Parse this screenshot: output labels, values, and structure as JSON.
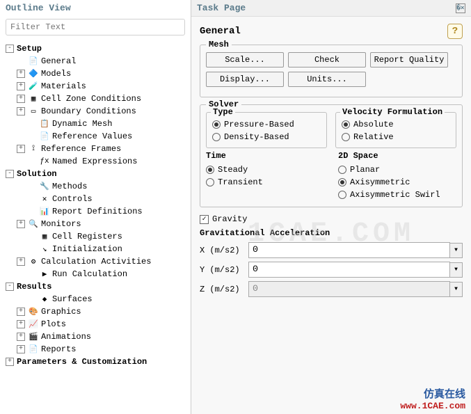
{
  "outline": {
    "title": "Outline View",
    "filter_placeholder": "Filter Text",
    "tree": [
      {
        "lvl": 1,
        "exp": "-",
        "icon": "",
        "label": "Setup",
        "bold": true
      },
      {
        "lvl": 2,
        "exp": "",
        "icon": "📄",
        "label": "General"
      },
      {
        "lvl": 2,
        "exp": "+",
        "icon": "🔷",
        "label": "Models"
      },
      {
        "lvl": 2,
        "exp": "+",
        "icon": "🧪",
        "label": "Materials"
      },
      {
        "lvl": 2,
        "exp": "+",
        "icon": "▦",
        "label": "Cell Zone Conditions"
      },
      {
        "lvl": 2,
        "exp": "+",
        "icon": "▭",
        "label": "Boundary Conditions"
      },
      {
        "lvl": 3,
        "exp": "",
        "icon": "📋",
        "label": "Dynamic Mesh"
      },
      {
        "lvl": 3,
        "exp": "",
        "icon": "📄",
        "label": "Reference Values"
      },
      {
        "lvl": 2,
        "exp": "+",
        "icon": "⟟",
        "label": "Reference Frames"
      },
      {
        "lvl": 3,
        "exp": "",
        "icon": "ƒx",
        "label": "Named Expressions"
      },
      {
        "lvl": 1,
        "exp": "-",
        "icon": "",
        "label": "Solution",
        "bold": true
      },
      {
        "lvl": 3,
        "exp": "",
        "icon": "🔧",
        "label": "Methods"
      },
      {
        "lvl": 3,
        "exp": "",
        "icon": "✕",
        "label": "Controls"
      },
      {
        "lvl": 3,
        "exp": "",
        "icon": "📊",
        "label": "Report Definitions"
      },
      {
        "lvl": 2,
        "exp": "+",
        "icon": "🔍",
        "label": "Monitors"
      },
      {
        "lvl": 3,
        "exp": "",
        "icon": "▦",
        "label": "Cell Registers"
      },
      {
        "lvl": 3,
        "exp": "",
        "icon": "↘",
        "label": "Initialization"
      },
      {
        "lvl": 2,
        "exp": "+",
        "icon": "⚙",
        "label": "Calculation Activities"
      },
      {
        "lvl": 3,
        "exp": "",
        "icon": "▶",
        "label": "Run Calculation"
      },
      {
        "lvl": 1,
        "exp": "-",
        "icon": "",
        "label": "Results",
        "bold": true
      },
      {
        "lvl": 3,
        "exp": "",
        "icon": "◆",
        "label": "Surfaces"
      },
      {
        "lvl": 2,
        "exp": "+",
        "icon": "🎨",
        "label": "Graphics"
      },
      {
        "lvl": 2,
        "exp": "+",
        "icon": "📈",
        "label": "Plots"
      },
      {
        "lvl": 2,
        "exp": "+",
        "icon": "🎬",
        "label": "Animations"
      },
      {
        "lvl": 2,
        "exp": "+",
        "icon": "📄",
        "label": "Reports"
      },
      {
        "lvl": 1,
        "exp": "+",
        "icon": "",
        "label": "Parameters & Customization",
        "bold": true
      }
    ]
  },
  "task": {
    "title": "Task Page",
    "section": "General",
    "mesh": {
      "title": "Mesh",
      "buttons": [
        "Scale...",
        "Check",
        "Report Quality",
        "Display...",
        "Units..."
      ]
    },
    "solver": {
      "title": "Solver",
      "type": {
        "title": "Type",
        "options": [
          "Pressure-Based",
          "Density-Based"
        ],
        "selected": 0
      },
      "vel": {
        "title": "Velocity Formulation",
        "options": [
          "Absolute",
          "Relative"
        ],
        "selected": 0
      },
      "time": {
        "title": "Time",
        "options": [
          "Steady",
          "Transient"
        ],
        "selected": 0
      },
      "space": {
        "title": "2D Space",
        "options": [
          "Planar",
          "Axisymmetric",
          "Axisymmetric Swirl"
        ],
        "selected": 1
      }
    },
    "gravity": {
      "checkbox_label": "Gravity",
      "checked": true,
      "section_title": "Gravitational Acceleration",
      "rows": [
        {
          "label": "X (m/s2)",
          "value": "0",
          "enabled": true
        },
        {
          "label": "Y (m/s2)",
          "value": "0",
          "enabled": true
        },
        {
          "label": "Z (m/s2)",
          "value": "0",
          "enabled": false
        }
      ]
    }
  },
  "brand": {
    "cn": "仿真在线",
    "url": "www.1CAE.com"
  },
  "watermark": "1CAE.COM"
}
